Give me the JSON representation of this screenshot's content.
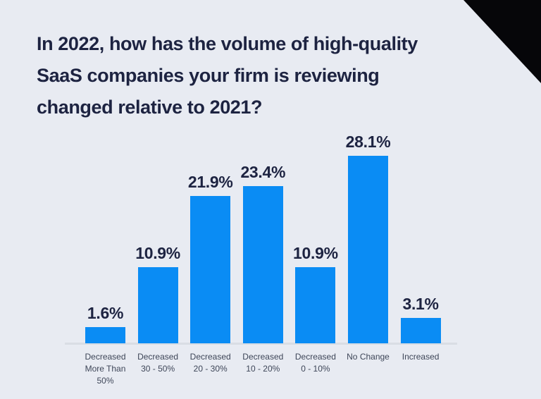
{
  "page": {
    "background_color": "#e8ebf2",
    "corner_accent_color": "#060609"
  },
  "title": {
    "text": "In 2022, how has the volume of high-quality\nSaaS companies your firm is reviewing\nchanged relative to 2021?"
  },
  "chart_data": {
    "type": "bar",
    "title": "In 2022, how has the volume of high-quality SaaS companies your firm is reviewing changed relative to 2021?",
    "categories": [
      "Decreased More Than 50%",
      "Decreased 30 - 50%",
      "Decreased 20 - 30%",
      "Decreased 10 - 20%",
      "Decreased 0 - 10%",
      "No Change",
      "Increased"
    ],
    "category_lines": [
      [
        "Decreased",
        "More Than",
        "50%"
      ],
      [
        "Decreased",
        "30 - 50%"
      ],
      [
        "Decreased",
        "20 - 30%"
      ],
      [
        "Decreased",
        "10 - 20%"
      ],
      [
        "Decreased",
        "0 - 10%"
      ],
      [
        "No Change"
      ],
      [
        "Increased"
      ]
    ],
    "values": [
      1.6,
      10.9,
      21.9,
      23.4,
      10.9,
      28.1,
      3.1
    ],
    "value_labels": [
      "1.6%",
      "10.9%",
      "21.9%",
      "23.4%",
      "10.9%",
      "28.1%",
      "3.1%"
    ],
    "xlabel": "",
    "ylabel": "",
    "ylim": [
      0,
      30
    ],
    "grid": false,
    "legend": null,
    "bar_color": "#0a8cf4",
    "value_label_color": "#1d2341",
    "category_label_color": "#3e4658",
    "axis_line_color": "#d9dde4"
  }
}
